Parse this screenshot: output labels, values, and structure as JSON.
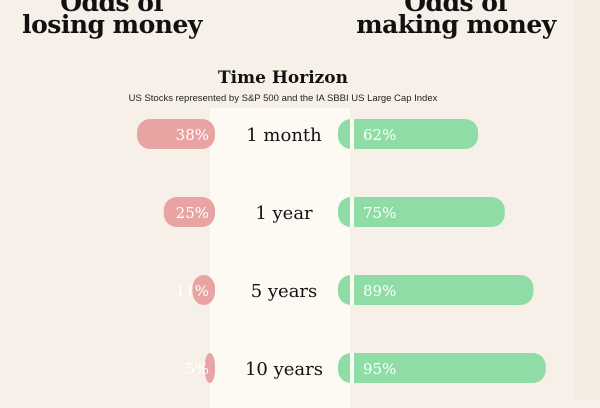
{
  "headings": {
    "left": "losing money",
    "right": "making money",
    "left_cut_top": "Odds of",
    "right_cut_top": "Odds of"
  },
  "chart_data": {
    "type": "bar",
    "title": "Time Horizon",
    "subtitle": "US Stocks represented by S&P 500 and the IA SBBI US Large Cap Index",
    "categories": [
      "1 month",
      "1 year",
      "5 years",
      "10 years"
    ],
    "series": [
      {
        "name": "losing money",
        "values": [
          38,
          25,
          11,
          5
        ],
        "labels": [
          "38%",
          "25%",
          "11%",
          "5%"
        ],
        "color": "#e8a3a3"
      },
      {
        "name": "making money",
        "values": [
          62,
          75,
          89,
          95
        ],
        "labels": [
          "62%",
          "75%",
          "89%",
          "95%"
        ],
        "color": "#8fdca6"
      }
    ],
    "xlim": [
      0,
      100
    ],
    "grid": false,
    "legend": "none"
  }
}
